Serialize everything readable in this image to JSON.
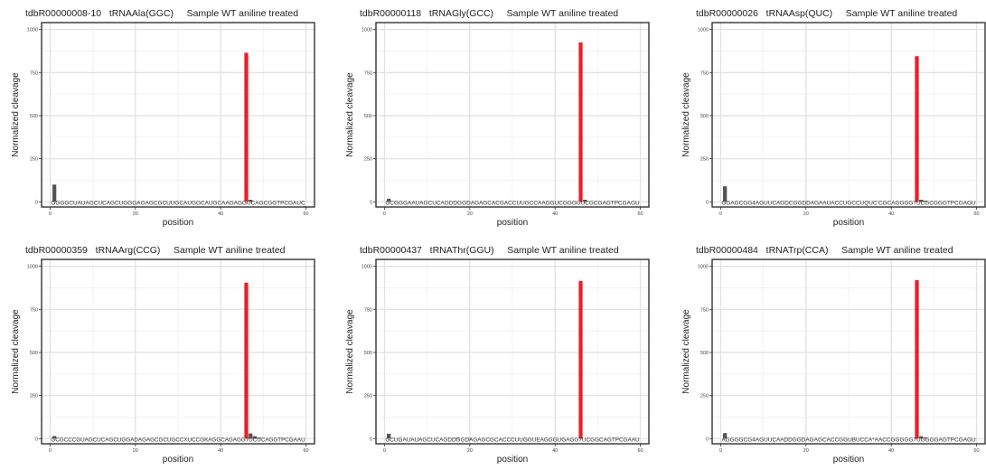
{
  "chart_data": [
    {
      "type": "bar",
      "title": "tdbR00000008-10   tRNAAla(GGC)     Sample WT aniline treated",
      "xlabel": "position",
      "ylabel": "Normalized cleavage",
      "xlim": [
        -2,
        62
      ],
      "ylim": [
        -30,
        1040
      ],
      "xticks": [
        0,
        20,
        40,
        60
      ],
      "yticks": [
        0,
        250,
        500,
        750,
        1000
      ],
      "sequence": "GGGGCUAUAGCUCAGCUGGGAGAGCGCUUGCAUGGCAUGCAAGAGGUCAGCGGTPCGAUC",
      "series": [
        {
          "color": "#555555",
          "points": [
            [
              1,
              100
            ],
            [
              47,
              12
            ]
          ]
        },
        {
          "color": "#e8202a",
          "points": [
            [
              46,
              865
            ]
          ]
        }
      ]
    },
    {
      "type": "bar",
      "title": "tdbR00000118   tRNAGly(GCC)     Sample WT aniline treated",
      "xlabel": "position",
      "ylabel": "Normalized cleavage",
      "xlim": [
        -2,
        62
      ],
      "ylim": [
        -30,
        1040
      ],
      "xticks": [
        0,
        20,
        40,
        60
      ],
      "yticks": [
        0,
        250,
        500,
        750,
        1000
      ],
      "sequence": "GCGGGAAUAGCUCAGDDGGDAGAGCACGACCUUGCCAAGGUCGGGUUCGCGAGTPCGAGU",
      "series": [
        {
          "color": "#555555",
          "points": [
            [
              1,
              18
            ],
            [
              47,
              12
            ]
          ]
        },
        {
          "color": "#e8202a",
          "points": [
            [
              46,
              925
            ]
          ]
        }
      ]
    },
    {
      "type": "bar",
      "title": "tdbR00000026   tRNAAsp(QUC)     Sample WT aniline treated",
      "xlabel": "position",
      "ylabel": "Normalized cleavage",
      "xlim": [
        -2,
        62
      ],
      "ylim": [
        -30,
        1040
      ],
      "xticks": [
        0,
        20,
        40,
        60
      ],
      "yticks": [
        0,
        250,
        500,
        750,
        1000
      ],
      "sequence": "GGAGCGG4AGUUCAGDCGGDDAGAAUACCUGCCUQUC’CGCAGGGG7UCGCGGGTPCGAGU",
      "series": [
        {
          "color": "#555555",
          "points": [
            [
              1,
              90
            ],
            [
              47,
              12
            ],
            [
              48,
              6
            ]
          ]
        },
        {
          "color": "#e8202a",
          "points": [
            [
              46,
              845
            ]
          ]
        }
      ]
    },
    {
      "type": "bar",
      "title": "tdbR00000359   tRNAArg(CCG)     Sample WT aniline treated",
      "xlabel": "position",
      "ylabel": "Normalized cleavage",
      "xlim": [
        -2,
        62
      ],
      "ylim": [
        -30,
        1040
      ],
      "xticks": [
        0,
        20,
        40,
        60
      ],
      "yticks": [
        0,
        250,
        500,
        750,
        1000
      ],
      "sequence": "GCGCCCGUAGCUCAGCUGGADAGAGCGCUGCCXUCCGKAGGCAGAGG7UCUCAGGTPCGAAU",
      "series": [
        {
          "color": "#555555",
          "points": [
            [
              1,
              15
            ],
            [
              47,
              30
            ],
            [
              48,
              14
            ],
            [
              49,
              6
            ]
          ]
        },
        {
          "color": "#e8202a",
          "points": [
            [
              46,
              905
            ]
          ]
        }
      ]
    },
    {
      "type": "bar",
      "title": "tdbR00000437   tRNAThr(GGU)     Sample WT aniline treated",
      "xlabel": "position",
      "ylabel": "Normalized cleavage",
      "xlim": [
        -2,
        62
      ],
      "ylim": [
        -30,
        1040
      ],
      "xticks": [
        0,
        20,
        40,
        60
      ],
      "yticks": [
        0,
        250,
        500,
        750,
        1000
      ],
      "sequence": "GCUGAUAUAGCUCAGDDGGDAGAGCGCACCCUUGGUEAGGGUGAGG7UCGGCAGTPCGAAU",
      "series": [
        {
          "color": "#555555",
          "points": [
            [
              1,
              28
            ],
            [
              17,
              4
            ],
            [
              20,
              3
            ]
          ]
        },
        {
          "color": "#e8202a",
          "points": [
            [
              46,
              915
            ]
          ]
        }
      ]
    },
    {
      "type": "bar",
      "title": "tdbR00000484   tRNATrp(CCA)     Sample WT aniline treated",
      "xlabel": "position",
      "ylabel": "Normalized cleavage",
      "xlim": [
        -2,
        62
      ],
      "ylim": [
        -30,
        1040
      ],
      "xticks": [
        0,
        20,
        40,
        60
      ],
      "yticks": [
        0,
        250,
        500,
        750,
        1000
      ],
      "sequence": "AGGGGCG4AGUUCAADDGGDAGAGCACCGGUBUCCA*AACCGGGGG7UGGGGAGTPCGAGU",
      "series": [
        {
          "color": "#555555",
          "points": [
            [
              1,
              32
            ],
            [
              47,
              14
            ],
            [
              48,
              6
            ]
          ]
        },
        {
          "color": "#e8202a",
          "points": [
            [
              46,
              920
            ]
          ]
        }
      ]
    }
  ]
}
